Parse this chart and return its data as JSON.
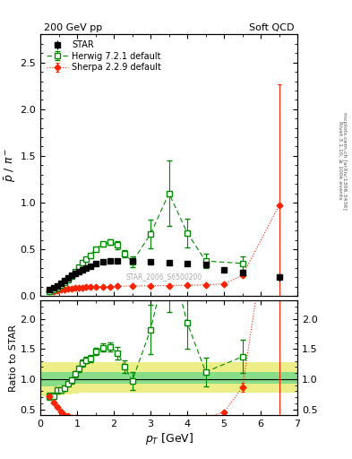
{
  "title_left": "200 GeV pp",
  "title_right": "Soft QCD",
  "right_label_top": "Rivet 3.1.10, ≥ 100k events",
  "right_label_bot": "mcplots.cern.ch [arXiv:1306.3436]",
  "watermark": "STAR_2006_S6500200",
  "ylabel_main": "$\\bar{p}$ / $\\pi^-$",
  "ylabel_ratio": "Ratio to STAR",
  "xlabel": "$p_T$ [GeV]",
  "xlim": [
    0,
    7
  ],
  "ylim_main": [
    0,
    2.8
  ],
  "ylim_ratio": [
    0.4,
    2.3
  ],
  "star_x": [
    0.25,
    0.35,
    0.45,
    0.55,
    0.65,
    0.75,
    0.85,
    0.95,
    1.05,
    1.15,
    1.25,
    1.35,
    1.5,
    1.7,
    1.9,
    2.1,
    2.5,
    3.0,
    3.5,
    4.0,
    4.5,
    5.0,
    5.5,
    6.5
  ],
  "star_y": [
    0.07,
    0.09,
    0.11,
    0.14,
    0.17,
    0.19,
    0.22,
    0.24,
    0.26,
    0.28,
    0.3,
    0.32,
    0.345,
    0.365,
    0.375,
    0.38,
    0.375,
    0.365,
    0.355,
    0.35,
    0.335,
    0.285,
    0.255,
    0.2
  ],
  "star_yerr": [
    0.004,
    0.005,
    0.005,
    0.005,
    0.006,
    0.006,
    0.006,
    0.007,
    0.007,
    0.008,
    0.008,
    0.009,
    0.01,
    0.01,
    0.01,
    0.01,
    0.01,
    0.01,
    0.01,
    0.01,
    0.012,
    0.018,
    0.02,
    0.04
  ],
  "herwig_x": [
    0.25,
    0.35,
    0.45,
    0.55,
    0.65,
    0.75,
    0.85,
    0.95,
    1.05,
    1.15,
    1.25,
    1.35,
    1.5,
    1.7,
    1.9,
    2.1,
    2.3,
    2.5,
    3.0,
    3.5,
    4.0,
    4.5,
    5.5
  ],
  "herwig_y": [
    0.05,
    0.065,
    0.09,
    0.115,
    0.145,
    0.175,
    0.215,
    0.26,
    0.305,
    0.355,
    0.395,
    0.43,
    0.505,
    0.555,
    0.575,
    0.545,
    0.455,
    0.365,
    0.665,
    1.1,
    0.675,
    0.375,
    0.35
  ],
  "herwig_yerr": [
    0.004,
    0.005,
    0.006,
    0.007,
    0.008,
    0.009,
    0.01,
    0.012,
    0.013,
    0.015,
    0.016,
    0.018,
    0.02,
    0.025,
    0.03,
    0.04,
    0.04,
    0.055,
    0.15,
    0.35,
    0.15,
    0.08,
    0.07
  ],
  "sherpa_x": [
    0.25,
    0.35,
    0.45,
    0.55,
    0.65,
    0.75,
    0.85,
    0.95,
    1.05,
    1.15,
    1.25,
    1.35,
    1.5,
    1.7,
    1.9,
    2.1,
    2.5,
    3.0,
    3.5,
    4.0,
    4.5,
    5.0,
    5.5,
    6.5
  ],
  "sherpa_y": [
    0.05,
    0.055,
    0.06,
    0.065,
    0.07,
    0.075,
    0.08,
    0.085,
    0.09,
    0.092,
    0.094,
    0.096,
    0.098,
    0.1,
    0.103,
    0.105,
    0.108,
    0.11,
    0.112,
    0.115,
    0.12,
    0.13,
    0.22,
    0.97
  ],
  "sherpa_yerr": [
    0.002,
    0.002,
    0.002,
    0.002,
    0.002,
    0.002,
    0.002,
    0.002,
    0.002,
    0.002,
    0.002,
    0.002,
    0.002,
    0.002,
    0.002,
    0.002,
    0.002,
    0.002,
    0.002,
    0.002,
    0.003,
    0.005,
    0.018,
    1.3
  ],
  "band_edges": [
    0.0,
    0.45,
    0.65,
    0.85,
    1.05,
    1.25,
    1.55,
    1.85,
    2.35,
    3.05,
    3.55,
    4.05,
    5.05,
    7.0
  ],
  "band_green_lo": [
    0.88,
    0.9,
    0.91,
    0.92,
    0.93,
    0.93,
    0.93,
    0.93,
    0.93,
    0.93,
    0.93,
    0.93,
    0.93,
    0.93
  ],
  "band_green_hi": [
    1.12,
    1.12,
    1.12,
    1.12,
    1.12,
    1.12,
    1.12,
    1.12,
    1.12,
    1.12,
    1.12,
    1.12,
    1.12,
    1.12
  ],
  "band_yellow_lo": [
    0.72,
    0.73,
    0.75,
    0.76,
    0.77,
    0.77,
    0.77,
    0.77,
    0.77,
    0.77,
    0.77,
    0.77,
    0.77,
    0.77
  ],
  "band_yellow_hi": [
    1.28,
    1.28,
    1.28,
    1.28,
    1.28,
    1.28,
    1.28,
    1.28,
    1.28,
    1.28,
    1.28,
    1.28,
    1.28,
    1.28
  ],
  "star_color": "#000000",
  "herwig_color": "#008800",
  "sherpa_color": "#ff2200",
  "band_green_color": "#88dd88",
  "band_yellow_color": "#eeee88"
}
